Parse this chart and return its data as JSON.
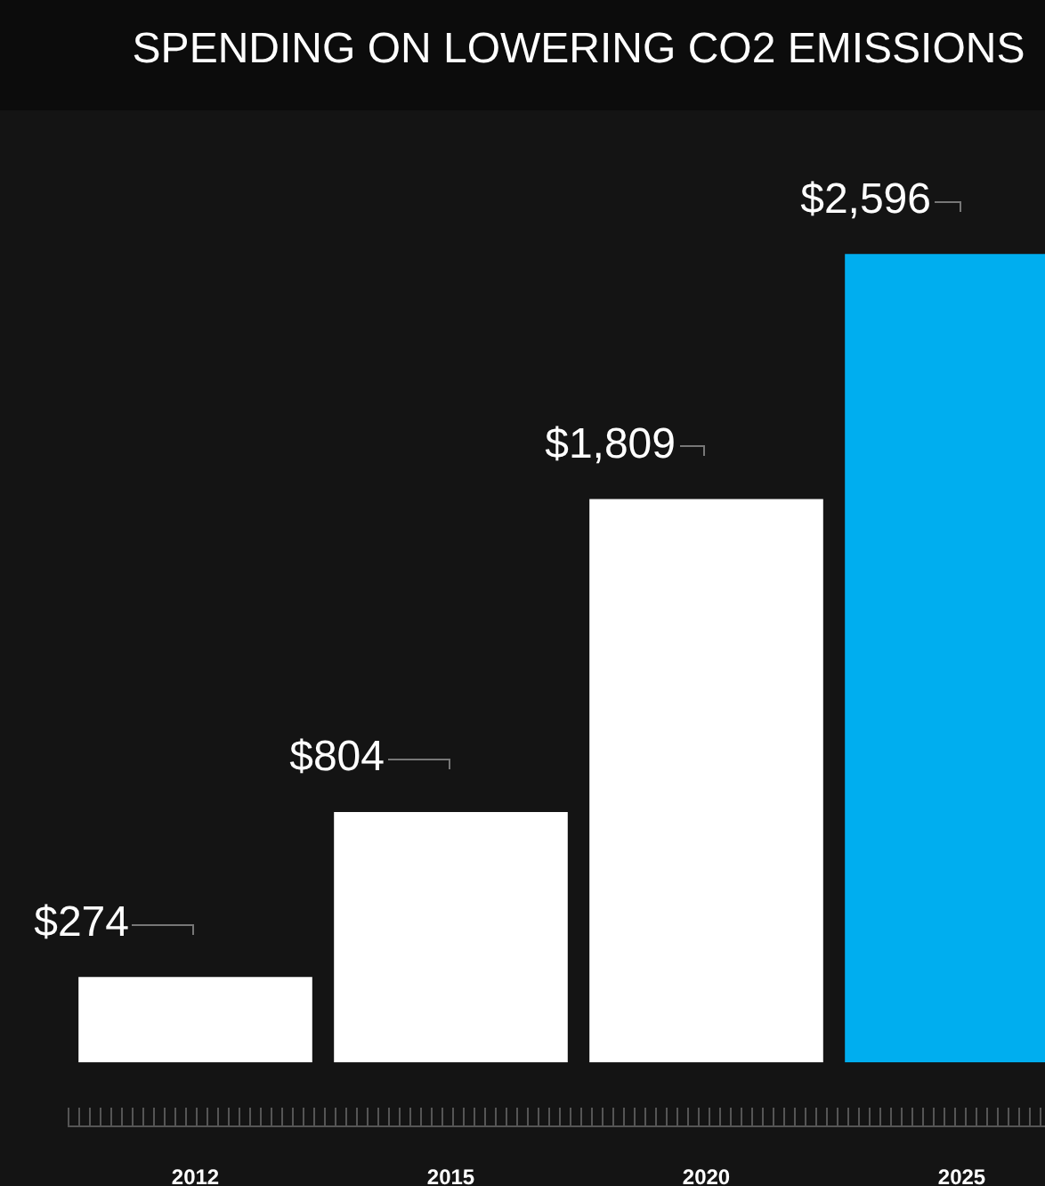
{
  "chart_data": {
    "type": "bar",
    "title": "SPENDING ON LOWERING CO2 EMISSIONS",
    "categories": [
      "2012",
      "2015",
      "2020",
      "2025"
    ],
    "values": [
      274,
      804,
      1809,
      2596
    ],
    "colors": [
      "#ffffff",
      "#ffffff",
      "#ffffff",
      "#00aeef"
    ],
    "value_labels": [
      "$274",
      "$804",
      "$1,809",
      "$2,596"
    ],
    "tick_labels": "x"
  }
}
